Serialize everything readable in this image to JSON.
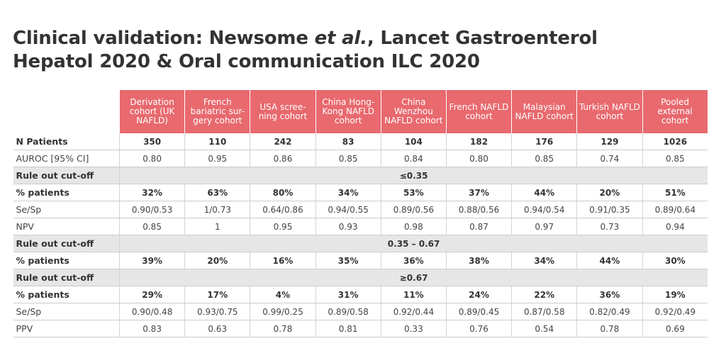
{
  "title": {
    "line1_prefix": "Clinical validation: Newsome ",
    "line1_italic": "et al.",
    "line1_suffix": ", Lancet Gastroenterol",
    "line2": "Hepatol  2020 & Oral communication ILC 2020"
  },
  "colors": {
    "header_fill": "#e8696e",
    "band_fill": "#e6e6e6"
  },
  "table": {
    "columns": [
      "Derivation cohort (UK NAFLD)",
      "French bariatric sur-gery cohort",
      "USA scree-ning cohort",
      "China Hong-Kong NAFLD cohort",
      "China Wenzhou NAFLD cohort",
      "French NAFLD cohort",
      "Malaysian NAFLD cohort",
      "Turkish NAFLD cohort",
      "Pooled external cohort"
    ],
    "rows": [
      {
        "type": "bold",
        "label": "N Patients",
        "values": [
          "350",
          "110",
          "242",
          "83",
          "104",
          "182",
          "176",
          "129",
          "1026"
        ]
      },
      {
        "type": "normal",
        "label": "AUROC [95% CI]",
        "values": [
          "0.80",
          "0.95",
          "0.86",
          "0.85",
          "0.84",
          "0.80",
          "0.85",
          "0.74",
          "0.85"
        ]
      },
      {
        "type": "band",
        "label": "Rule out cut-off",
        "value": "≤0.35"
      },
      {
        "type": "bold",
        "label": "% patients",
        "values": [
          "32%",
          "63%",
          "80%",
          "34%",
          "53%",
          "37%",
          "44%",
          "20%",
          "51%"
        ]
      },
      {
        "type": "normal",
        "label": "Se/Sp",
        "values": [
          "0.90/0.53",
          "1/0.73",
          "0.64/0.86",
          "0.94/0.55",
          "0.89/0.56",
          "0.88/0.56",
          "0.94/0.54",
          "0.91/0.35",
          "0.89/0.64"
        ]
      },
      {
        "type": "normal",
        "label": "NPV",
        "values": [
          "0.85",
          "1",
          "0.95",
          "0.93",
          "0.98",
          "0.87",
          "0.97",
          "0.73",
          "0.94"
        ]
      },
      {
        "type": "band",
        "label": "Rule out cut-off",
        "value": "0.35 – 0.67"
      },
      {
        "type": "bold",
        "label": "% patients",
        "values": [
          "39%",
          "20%",
          "16%",
          "35%",
          "36%",
          "38%",
          "34%",
          "44%",
          "30%"
        ]
      },
      {
        "type": "band",
        "label": "Rule out cut-off",
        "value": "≥0.67"
      },
      {
        "type": "bold",
        "label": "% patients",
        "values": [
          "29%",
          "17%",
          "4%",
          "31%",
          "11%",
          "24%",
          "22%",
          "36%",
          "19%"
        ]
      },
      {
        "type": "normal",
        "label": "Se/Sp",
        "values": [
          "0.90/0.48",
          "0.93/0.75",
          "0.99/0.25",
          "0.89/0.58",
          "0.92/0.44",
          "0.89/0.45",
          "0.87/0.58",
          "0.82/0.49",
          "0.92/0.49"
        ]
      },
      {
        "type": "normal",
        "label": "PPV",
        "values": [
          "0.83",
          "0.63",
          "0.78",
          "0.81",
          "0.33",
          "0.76",
          "0.54",
          "0.78",
          "0.69"
        ]
      }
    ]
  }
}
